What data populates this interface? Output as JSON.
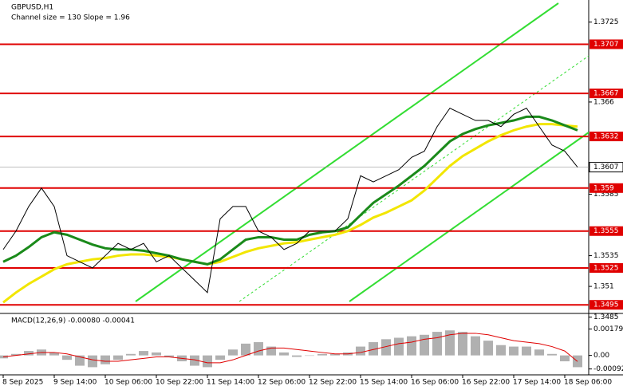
{
  "chart_data": [
    {
      "type": "line",
      "title": "GBPUSD,H1",
      "subtitle": "Channel size = 130 Slope = 1.96",
      "categories": [
        "8 Sep 2025",
        null,
        null,
        null,
        "9 Sep 14:00",
        null,
        null,
        null,
        "10 Sep 06:00",
        null,
        null,
        null,
        "10 Sep 22:00",
        null,
        null,
        null,
        "11 Sep 14:00",
        null,
        null,
        null,
        "12 Sep 06:00",
        null,
        null,
        null,
        "12 Sep 22:00",
        null,
        null,
        null,
        "15 Sep 14:00",
        null,
        null,
        null,
        "16 Sep 06:00",
        null,
        null,
        null,
        "16 Sep 22:00",
        null,
        null,
        null,
        "17 Sep 14:00",
        null,
        null,
        null,
        "18 Sep 06:00",
        null
      ],
      "series": [
        {
          "name": "GBPUSD",
          "color": "#000000",
          "values": [
            1.354,
            1.3555,
            1.3575,
            1.359,
            1.3575,
            1.3535,
            1.353,
            1.3525,
            1.3535,
            1.3545,
            1.354,
            1.3545,
            1.353,
            1.3535,
            1.3525,
            1.3515,
            1.3505,
            1.3565,
            1.3575,
            1.3575,
            1.3555,
            1.355,
            1.354,
            1.3545,
            1.3555,
            1.3555,
            1.3555,
            1.3565,
            1.36,
            1.3595,
            1.36,
            1.3605,
            1.3615,
            1.362,
            1.364,
            1.3655,
            1.365,
            1.3645,
            1.3645,
            1.364,
            1.365,
            1.3655,
            1.364,
            1.3625,
            1.362,
            1.3607
          ]
        },
        {
          "color": "#1a8a1a",
          "values": [
            1.353,
            1.3535,
            1.3542,
            1.355,
            1.3554,
            1.3552,
            1.3548,
            1.3544,
            1.3541,
            1.354,
            1.354,
            1.3539,
            1.3537,
            1.3535,
            1.3532,
            1.353,
            1.3528,
            1.3532,
            1.354,
            1.3548,
            1.355,
            1.355,
            1.3548,
            1.3548,
            1.3552,
            1.3554,
            1.3555,
            1.3558,
            1.3568,
            1.3578,
            1.3585,
            1.3592,
            1.36,
            1.3608,
            1.3618,
            1.3628,
            1.3634,
            1.3638,
            1.3641,
            1.3643,
            1.3645,
            1.3648,
            1.3648,
            1.3645,
            1.3641,
            1.3637
          ]
        },
        {
          "color": "#f2e600",
          "values": [
            1.3497,
            1.3505,
            1.3512,
            1.3518,
            1.3524,
            1.3528,
            1.353,
            1.3532,
            1.3533,
            1.3535,
            1.3536,
            1.3536,
            1.3535,
            1.3534,
            1.3532,
            1.353,
            1.3528,
            1.353,
            1.3534,
            1.3538,
            1.3541,
            1.3543,
            1.3545,
            1.3546,
            1.3548,
            1.355,
            1.3552,
            1.3555,
            1.356,
            1.3566,
            1.357,
            1.3575,
            1.358,
            1.3588,
            1.3598,
            1.3608,
            1.3616,
            1.3622,
            1.3628,
            1.3633,
            1.3637,
            1.364,
            1.3642,
            1.3642,
            1.3641,
            1.364
          ]
        }
      ],
      "levels": [
        1.3707,
        1.3667,
        1.3632,
        1.359,
        1.3555,
        1.3525,
        1.3495
      ],
      "level_color": "#e00000",
      "last_price": 1.3607,
      "ylim": [
        1.3488,
        1.3743
      ],
      "yticks": [
        1.3725,
        1.366,
        1.3585,
        1.3535,
        1.351,
        1.3485
      ]
    },
    {
      "type": "macd",
      "title": "MACD(12,26,9) -0.00080 -0.00041",
      "values": [
        -0.0002,
        0.0001,
        0.0003,
        0.0004,
        0.0002,
        -0.0003,
        -0.0007,
        -0.0008,
        -0.0006,
        -0.0003,
        0.0001,
        0.0003,
        0.0002,
        -0.0001,
        -0.0004,
        -0.0007,
        -0.0008,
        -0.0003,
        0.0004,
        0.0008,
        0.0009,
        0.0006,
        0.0002,
        -0.0001,
        0.0,
        0.0001,
        0.0001,
        0.0002,
        0.0006,
        0.0009,
        0.0011,
        0.0012,
        0.0013,
        0.0014,
        0.0016,
        0.0017,
        0.0016,
        0.0013,
        0.001,
        0.0007,
        0.0006,
        0.0006,
        0.0004,
        0.0001,
        -0.0004,
        -0.0008
      ],
      "signal": [
        -0.0001,
        0.0,
        0.0001,
        0.0002,
        0.0002,
        0.0001,
        -0.0001,
        -0.0003,
        -0.0004,
        -0.0004,
        -0.0003,
        -0.0002,
        -0.0001,
        -0.0001,
        -0.0002,
        -0.0003,
        -0.0005,
        -0.0005,
        -0.0003,
        0.0,
        0.0003,
        0.0005,
        0.0005,
        0.0004,
        0.0003,
        0.0002,
        0.0001,
        0.0001,
        0.0002,
        0.0004,
        0.0006,
        0.0008,
        0.0009,
        0.0011,
        0.0012,
        0.0014,
        0.0015,
        0.0015,
        0.0014,
        0.0012,
        0.001,
        0.0009,
        0.0008,
        0.0006,
        0.0003,
        -0.00041
      ],
      "color": "#b0b0b0",
      "signal_color": "#e00000",
      "ylim": [
        -0.00132,
        0.00258
      ],
      "yticks": [
        0.00179,
        {
          "value": 0,
          "label": "0.00"
        },
        -0.00092
      ]
    }
  ]
}
